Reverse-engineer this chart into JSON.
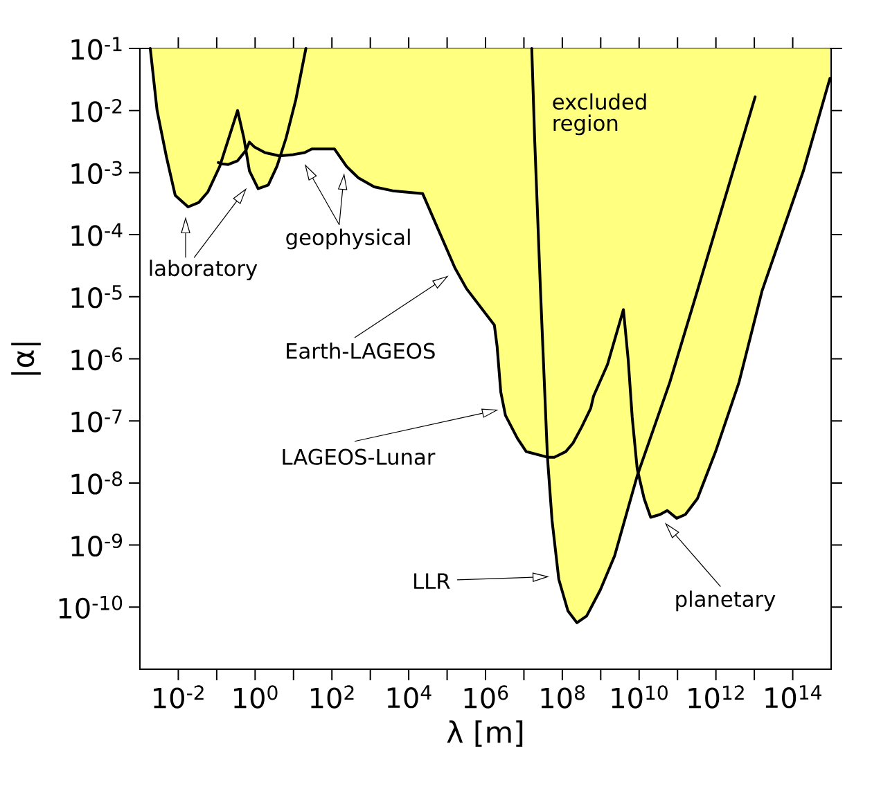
{
  "chart_data": {
    "type": "line",
    "log": "xy",
    "xlabel": "λ [m]",
    "ylabel": "|α|",
    "xlim": [
      0.001,
      1000000000000000.0
    ],
    "ylim": [
      1e-11,
      0.1
    ],
    "xticks": [
      {
        "value": 0.01,
        "label": "10$^{-2}$"
      },
      {
        "value": 0.1,
        "label": null
      },
      {
        "value": 1,
        "label": "10$^{0}$"
      },
      {
        "value": 10.0,
        "label": null
      },
      {
        "value": 100.0,
        "label": "10$^{2}$"
      },
      {
        "value": 1000.0,
        "label": null
      },
      {
        "value": 10000.0,
        "label": "10$^{4}$"
      },
      {
        "value": 100000.0,
        "label": null
      },
      {
        "value": 1000000.0,
        "label": "10$^{6}$"
      },
      {
        "value": 10000000.0,
        "label": null
      },
      {
        "value": 100000000.0,
        "label": "10$^{8}$"
      },
      {
        "value": 1000000000.0,
        "label": null
      },
      {
        "value": 10000000000.0,
        "label": "10$^{10}$"
      },
      {
        "value": 100000000000.0,
        "label": null
      },
      {
        "value": 1000000000000.0,
        "label": "10$^{12}$"
      },
      {
        "value": 10000000000000.0,
        "label": null
      },
      {
        "value": 100000000000000.0,
        "label": "10$^{14}$"
      }
    ],
    "yticks": [
      {
        "value": 0.1,
        "label": "10$^{-1}$"
      },
      {
        "value": 0.01,
        "label": "10$^{-2}$"
      },
      {
        "value": 0.001,
        "label": "10$^{-3}$"
      },
      {
        "value": 0.0001,
        "label": "10$^{-4}$"
      },
      {
        "value": 1e-05,
        "label": "10$^{-5}$"
      },
      {
        "value": 1e-06,
        "label": "10$^{-6}$"
      },
      {
        "value": 1e-07,
        "label": "10$^{-7}$"
      },
      {
        "value": 1e-08,
        "label": "10$^{-8}$"
      },
      {
        "value": 1e-09,
        "label": "10$^{-9}$"
      },
      {
        "value": 1e-10,
        "label": "10$^{-10}$"
      }
    ],
    "annotations": [
      "excluded region",
      "laboratory",
      "geophysical",
      "Earth-LAGEOS",
      "LAGEOS-Lunar",
      "LLR",
      "planetary"
    ],
    "series": [
      {
        "color": "#000000",
        "x": [
          0.00186,
          0.0028,
          0.0049,
          0.0083,
          0.018,
          0.034,
          0.059,
          0.12,
          0.35,
          0.51,
          0.71,
          1.2,
          2.2,
          3.7,
          6.4,
          11.5,
          21
        ],
        "values": [
          0.1,
          0.01,
          0.0018,
          0.00043,
          0.00028,
          0.00033,
          0.00049,
          0.00126,
          0.01,
          0.0036,
          0.00107,
          0.00055,
          0.00063,
          0.00126,
          0.0036,
          0.015,
          0.1
        ],
        "lower": [
          0.1,
          0.01,
          0.0018,
          0.00043,
          0.00028,
          0.00033,
          0.00049,
          0.00126,
          0.01,
          0.0036,
          0.00107,
          0.00055,
          0.00063,
          0.00126,
          0.0036,
          0.015,
          0.1
        ],
        "upper": [
          0.1,
          0.1,
          0.1,
          0.1,
          0.1,
          0.1,
          0.1,
          0.1,
          0.1,
          0.1,
          0.1,
          0.1,
          0.1,
          0.1,
          0.1,
          0.1,
          0.1
        ]
      },
      {
        "color": "#000000",
        "x": [
          0.11,
          0.135,
          0.2,
          0.35,
          0.58,
          0.71,
          0.95,
          1.8,
          4.3,
          9.8,
          19.5,
          30,
          117,
          240,
          480,
          1260,
          3800,
          23000.0,
          160000.0,
          320000.0,
          1700000.0,
          2000000.0,
          2500000.0,
          3300000.0,
          6800000.0,
          11500000.0,
          41000000.0,
          62000000.0,
          123000000.0,
          190000000.0,
          320000000.0,
          550000000.0,
          650000000.0,
          1500000000.0,
          3900000000.0,
          5200000000.0,
          6600000000.0,
          8900000000.0,
          13500000000.0,
          20000000000.0,
          35000000000.0,
          54000000000.0,
          95000000000.0,
          160000000000.0,
          330000000000.0,
          980000000000.0,
          4000000000000.0,
          16000000000000.0,
          190000000000000.0,
          930000000000000.0
        ],
        "values": [
          0.00145,
          0.00138,
          0.00135,
          0.00155,
          0.0023,
          0.0031,
          0.0026,
          0.0021,
          0.00186,
          0.00195,
          0.0021,
          0.0024,
          0.0024,
          0.00126,
          0.00083,
          0.00059,
          0.00051,
          0.00046,
          2.9e-05,
          1.35e-05,
          3.5e-06,
          1.6e-06,
          2.9e-07,
          1.23e-07,
          5.2e-08,
          3.2e-08,
          2.6e-08,
          2.6e-08,
          3.2e-08,
          4.4e-08,
          8e-08,
          1.6e-07,
          2.5e-07,
          8.1e-07,
          6.2e-06,
          9.6e-07,
          1.15e-07,
          1.7e-08,
          5.6e-09,
          2.8e-09,
          3.1e-09,
          3.6e-09,
          2.7e-09,
          3.1e-09,
          5.6e-09,
          3.2e-08,
          4.2e-07,
          1.26e-05,
          0.00107,
          0.033
        ],
        "lower": [
          0.00145,
          0.00138,
          0.00135,
          0.00155,
          0.0023,
          0.0031,
          0.0026,
          0.0021,
          0.00186,
          0.00195,
          0.0021,
          0.0024,
          0.0024,
          0.00126,
          0.00083,
          0.00059,
          0.00051,
          0.00046,
          2.9e-05,
          1.35e-05,
          3.5e-06,
          1.6e-06,
          2.9e-07,
          1.23e-07,
          5.2e-08,
          3.2e-08,
          2.6e-08,
          2.6e-08,
          3.2e-08,
          4.4e-08,
          8e-08,
          1.6e-07,
          2.5e-07,
          8.1e-07,
          6.2e-06,
          9.6e-07,
          1.15e-07,
          1.7e-08,
          5.6e-09,
          2.8e-09,
          3.1e-09,
          3.6e-09,
          2.7e-09,
          3.1e-09,
          5.6e-09,
          3.2e-08,
          4.2e-07,
          1.26e-05,
          0.00107,
          0.033
        ],
        "upper": [
          0.1,
          0.1,
          0.1,
          0.1,
          0.1,
          0.1,
          0.1,
          0.1,
          0.1,
          0.1,
          0.1,
          0.1,
          0.1,
          0.1,
          0.1,
          0.1,
          0.1,
          0.1,
          0.1,
          0.1,
          0.1,
          0.1,
          0.1,
          0.1,
          0.1,
          0.1,
          0.1,
          0.1,
          0.1,
          0.1,
          0.1,
          0.1,
          0.1,
          0.1,
          0.1,
          0.1,
          0.1,
          0.1,
          0.1,
          0.1,
          0.1,
          0.1,
          0.1,
          0.1,
          0.1,
          0.1,
          0.1,
          0.1,
          0.1,
          0.1
        ]
      },
      {
        "color": "#000000",
        "x": [
          16000000.0,
          19000000.0,
          27000000.0,
          41000000.0,
          54000000.0,
          81000000.0,
          140000000.0,
          240000000.0,
          430000000.0,
          980000000.0,
          2300000000.0,
          8900000000.0,
          63000000000.0,
          330000000000.0,
          10500000000000.0
        ],
        "values": [
          0.1,
          0.0036,
          1.26e-05,
          2.6e-08,
          2.5e-09,
          2.8e-10,
          8.7e-11,
          5.6e-11,
          7.2e-11,
          1.9e-10,
          6.7e-10,
          1.3e-08,
          4.2e-07,
          1.26e-05,
          0.0166
        ],
        "lower": [
          0.1,
          0.0036,
          1.26e-05,
          2.6e-08,
          2.5e-09,
          2.8e-10,
          8.7e-11,
          5.6e-11,
          7.2e-11,
          1.9e-10,
          6.7e-10,
          1.3e-08,
          4.2e-07,
          1.26e-05,
          0.0166
        ],
        "upper": [
          0.1,
          0.1,
          0.1,
          0.1,
          0.1,
          0.1,
          0.1,
          0.1,
          0.1,
          0.1,
          0.1,
          0.1,
          0.1,
          0.1,
          0.1
        ]
      }
    ]
  }
}
